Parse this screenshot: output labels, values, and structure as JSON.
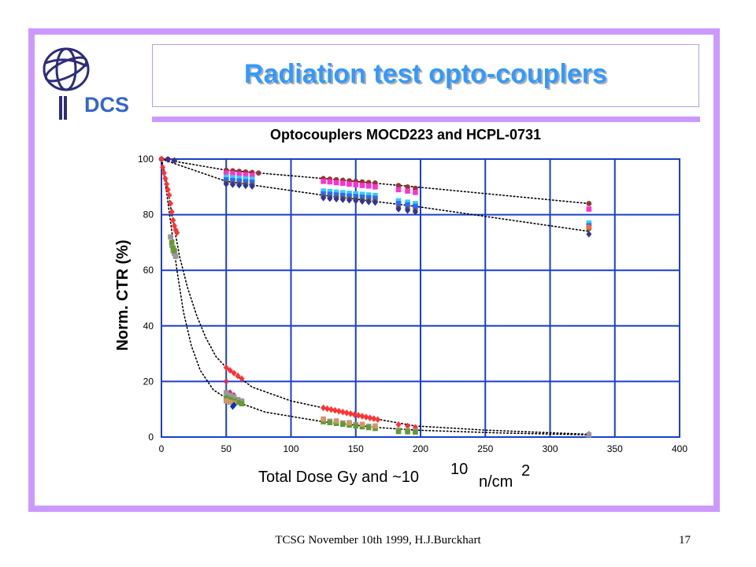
{
  "slide": {
    "title": "Radiation test opto-couplers",
    "logo_text": "DCS",
    "footer": "TCSG November 10th 1999,  H.J.Burckhart",
    "page_number": "17",
    "accent_color": "#cc99ff",
    "title_color": "#3399ff"
  },
  "chart_data": {
    "type": "scatter",
    "title": "Optocouplers MOCD223 and HCPL-0731",
    "xlabel_main": "Total Dose Gy  and ~10",
    "xlabel_exp": "10",
    "xlabel_unit": "n/cm",
    "xlabel_unit_exp": "2",
    "ylabel": "Norm. CTR (%)",
    "xlim": [
      0,
      400
    ],
    "ylim": [
      0,
      100
    ],
    "xticks": [
      0,
      50,
      100,
      150,
      200,
      250,
      300,
      350,
      400
    ],
    "yticks": [
      0,
      20,
      40,
      60,
      80,
      100
    ],
    "grid": true,
    "grid_color": "#1a3fcc",
    "series": [
      {
        "color": "#993333",
        "marker": "circle",
        "points": [
          [
            0,
            100
          ],
          [
            5,
            100
          ],
          [
            10,
            99.5
          ],
          [
            50,
            96
          ],
          [
            55,
            95.8
          ],
          [
            60,
            95.6
          ],
          [
            65,
            95.4
          ],
          [
            70,
            95.2
          ],
          [
            75,
            95
          ],
          [
            125,
            93
          ],
          [
            130,
            92.8
          ],
          [
            135,
            92.6
          ],
          [
            140,
            92.4
          ],
          [
            145,
            92.2
          ],
          [
            150,
            92
          ],
          [
            155,
            91.8
          ],
          [
            160,
            91.6
          ],
          [
            165,
            91.4
          ],
          [
            183,
            90.5
          ],
          [
            190,
            90
          ],
          [
            196,
            89.5
          ],
          [
            330,
            84
          ]
        ]
      },
      {
        "color": "#ff33cc",
        "marker": "square",
        "points": [
          [
            50,
            95
          ],
          [
            55,
            94.8
          ],
          [
            60,
            94.5
          ],
          [
            65,
            94.3
          ],
          [
            70,
            94.1
          ],
          [
            125,
            92
          ],
          [
            130,
            91.8
          ],
          [
            135,
            91.5
          ],
          [
            140,
            91.3
          ],
          [
            145,
            91
          ],
          [
            150,
            90.8
          ],
          [
            155,
            90.5
          ],
          [
            160,
            90.3
          ],
          [
            165,
            90
          ],
          [
            183,
            89
          ],
          [
            190,
            88.5
          ],
          [
            196,
            88
          ],
          [
            330,
            82
          ]
        ]
      },
      {
        "color": "#33ccff",
        "marker": "square",
        "points": [
          [
            50,
            93.5
          ],
          [
            55,
            93.3
          ],
          [
            60,
            93.1
          ],
          [
            65,
            92.9
          ],
          [
            70,
            92.7
          ],
          [
            125,
            88.5
          ],
          [
            130,
            88.3
          ],
          [
            135,
            88.1
          ],
          [
            140,
            87.9
          ],
          [
            145,
            87.7
          ],
          [
            150,
            87.5
          ],
          [
            155,
            87.3
          ],
          [
            160,
            87.1
          ],
          [
            165,
            86.9
          ],
          [
            183,
            85
          ],
          [
            190,
            84.5
          ],
          [
            196,
            84
          ],
          [
            330,
            77
          ]
        ]
      },
      {
        "color": "#3366ff",
        "marker": "square",
        "points": [
          [
            50,
            92.5
          ],
          [
            55,
            92.3
          ],
          [
            60,
            92.1
          ],
          [
            65,
            91.9
          ],
          [
            70,
            91.7
          ],
          [
            125,
            87.5
          ],
          [
            130,
            87.3
          ],
          [
            135,
            87.1
          ],
          [
            140,
            86.9
          ],
          [
            145,
            86.7
          ],
          [
            150,
            86.5
          ],
          [
            155,
            86.3
          ],
          [
            160,
            86.1
          ],
          [
            165,
            85.9
          ],
          [
            183,
            84
          ],
          [
            190,
            83.5
          ],
          [
            196,
            83
          ],
          [
            330,
            76
          ]
        ]
      },
      {
        "color": "#666633",
        "marker": "circle",
        "points": [
          [
            50,
            91.5
          ],
          [
            55,
            91.3
          ],
          [
            60,
            91.1
          ],
          [
            65,
            90.9
          ],
          [
            70,
            90.7
          ],
          [
            125,
            86.5
          ],
          [
            130,
            86.3
          ],
          [
            135,
            86.1
          ],
          [
            140,
            85.9
          ],
          [
            145,
            85.7
          ],
          [
            150,
            85.5
          ],
          [
            155,
            85.3
          ],
          [
            160,
            85.1
          ],
          [
            165,
            84.9
          ],
          [
            183,
            82.5
          ],
          [
            190,
            82
          ],
          [
            196,
            81.5
          ],
          [
            330,
            75
          ]
        ]
      },
      {
        "color": "#ff6633",
        "marker": "circle",
        "points": [
          [
            330,
            75.5
          ]
        ]
      },
      {
        "color": "#333399",
        "marker": "diamond",
        "points": [
          [
            0,
            100
          ],
          [
            5,
            99.8
          ],
          [
            10,
            99.5
          ],
          [
            50,
            91
          ],
          [
            55,
            90.8
          ],
          [
            60,
            90.6
          ],
          [
            65,
            90.4
          ],
          [
            70,
            90.2
          ],
          [
            125,
            86
          ],
          [
            130,
            85.8
          ],
          [
            135,
            85.6
          ],
          [
            140,
            85.4
          ],
          [
            145,
            85.2
          ],
          [
            150,
            85
          ],
          [
            155,
            84.8
          ],
          [
            160,
            84.6
          ],
          [
            165,
            84.4
          ],
          [
            183,
            82
          ],
          [
            190,
            81.5
          ],
          [
            196,
            81
          ],
          [
            330,
            73
          ]
        ]
      },
      {
        "color": "#ff3333",
        "marker": "diamond",
        "points": [
          [
            0,
            100
          ],
          [
            1,
            97
          ],
          [
            2,
            95
          ],
          [
            3,
            93
          ],
          [
            4,
            91
          ],
          [
            5,
            89
          ],
          [
            6,
            87
          ],
          [
            7,
            84
          ],
          [
            8,
            81
          ],
          [
            9,
            78
          ],
          [
            10,
            76
          ],
          [
            11,
            74.5
          ],
          [
            12,
            73.5
          ],
          [
            50,
            25
          ],
          [
            53,
            24
          ],
          [
            56,
            23
          ],
          [
            59,
            22
          ],
          [
            62,
            21
          ],
          [
            125,
            10.5
          ],
          [
            128,
            10.2
          ],
          [
            131,
            9.9
          ],
          [
            134,
            9.6
          ],
          [
            137,
            9.3
          ],
          [
            140,
            9
          ],
          [
            143,
            8.7
          ],
          [
            146,
            8.4
          ],
          [
            149,
            8.1
          ],
          [
            152,
            7.8
          ],
          [
            155,
            7.5
          ],
          [
            158,
            7.2
          ],
          [
            161,
            6.9
          ],
          [
            164,
            6.6
          ],
          [
            167,
            6.3
          ],
          [
            183,
            4.5
          ],
          [
            190,
            4
          ],
          [
            196,
            3.5
          ],
          [
            330,
            1
          ]
        ]
      },
      {
        "color": "#cc3366",
        "marker": "diamond",
        "points": [
          [
            50,
            20
          ],
          [
            53,
            16
          ],
          [
            56,
            15
          ]
        ]
      },
      {
        "color": "#999999",
        "marker": "square",
        "points": [
          [
            7,
            72
          ],
          [
            8,
            69
          ],
          [
            9,
            67
          ],
          [
            10,
            66
          ],
          [
            11,
            65
          ],
          [
            50,
            16
          ],
          [
            53,
            15
          ],
          [
            56,
            14.5
          ],
          [
            59,
            13.5
          ],
          [
            62,
            13
          ],
          [
            125,
            6
          ],
          [
            130,
            5.7
          ],
          [
            135,
            5.4
          ],
          [
            140,
            5.1
          ],
          [
            145,
            4.8
          ],
          [
            150,
            4.5
          ],
          [
            155,
            4.2
          ],
          [
            160,
            3.9
          ],
          [
            165,
            3.6
          ],
          [
            183,
            2.5
          ],
          [
            190,
            2.3
          ],
          [
            196,
            2.2
          ],
          [
            330,
            0.8
          ]
        ]
      },
      {
        "color": "#669933",
        "marker": "square",
        "points": [
          [
            8,
            70
          ],
          [
            9,
            68
          ],
          [
            10,
            67
          ],
          [
            50,
            14
          ],
          [
            53,
            13.5
          ],
          [
            56,
            13
          ],
          [
            59,
            12.5
          ],
          [
            62,
            12
          ],
          [
            125,
            5.5
          ],
          [
            130,
            5.2
          ],
          [
            135,
            4.9
          ],
          [
            140,
            4.6
          ],
          [
            145,
            4.3
          ],
          [
            150,
            4
          ],
          [
            155,
            3.7
          ],
          [
            160,
            3.4
          ],
          [
            165,
            3.1
          ],
          [
            183,
            2
          ],
          [
            190,
            1.9
          ],
          [
            196,
            1.8
          ]
        ]
      },
      {
        "color": "#cc9966",
        "marker": "square",
        "points": [
          [
            50,
            13
          ],
          [
            53,
            12.5
          ],
          [
            56,
            12.2
          ],
          [
            125,
            6.5
          ],
          [
            135,
            5.8
          ],
          [
            145,
            5.2
          ],
          [
            155,
            4.6
          ],
          [
            165,
            4
          ]
        ]
      },
      {
        "color": "#0033cc",
        "marker": "diamond",
        "points": [
          [
            55,
            11
          ],
          [
            56,
            11.5
          ]
        ]
      }
    ],
    "fit_lines": [
      [
        [
          0,
          100
        ],
        [
          50,
          96
        ],
        [
          125,
          93
        ],
        [
          196,
          90
        ],
        [
          330,
          84
        ]
      ],
      [
        [
          0,
          100
        ],
        [
          50,
          92
        ],
        [
          125,
          87
        ],
        [
          196,
          83
        ],
        [
          330,
          74
        ]
      ],
      [
        [
          0,
          100
        ],
        [
          4,
          92
        ],
        [
          8,
          80
        ],
        [
          14,
          65
        ],
        [
          20,
          54
        ],
        [
          27,
          44
        ],
        [
          34,
          36
        ],
        [
          42,
          29
        ],
        [
          50,
          25
        ],
        [
          70,
          18
        ],
        [
          100,
          13
        ],
        [
          130,
          10
        ],
        [
          160,
          7
        ],
        [
          196,
          4
        ],
        [
          250,
          2.5
        ],
        [
          330,
          1
        ]
      ],
      [
        [
          0,
          100
        ],
        [
          4,
          88
        ],
        [
          8,
          74
        ],
        [
          12,
          60
        ],
        [
          17,
          45
        ],
        [
          23,
          33
        ],
        [
          30,
          24
        ],
        [
          40,
          17
        ],
        [
          50,
          14
        ],
        [
          80,
          9
        ],
        [
          125,
          5.5
        ],
        [
          165,
          3.5
        ],
        [
          196,
          2.5
        ],
        [
          260,
          1.5
        ],
        [
          330,
          0.8
        ]
      ]
    ]
  }
}
